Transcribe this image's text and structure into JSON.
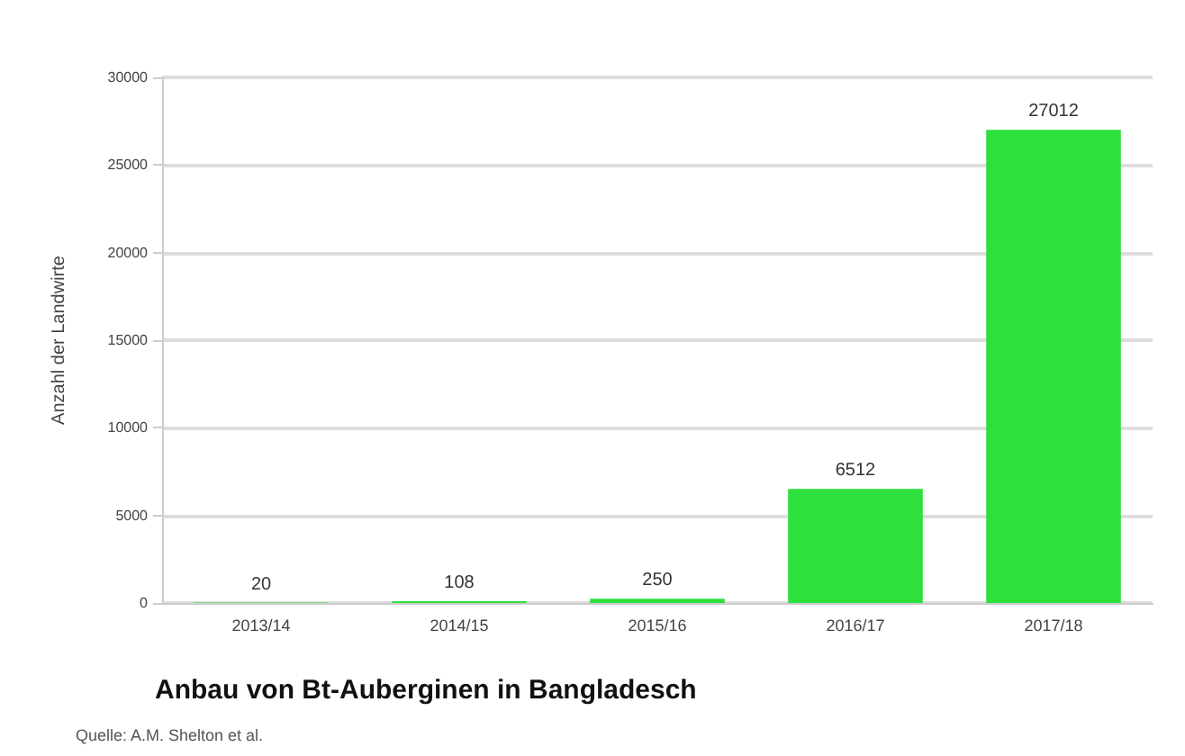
{
  "chart_data": {
    "type": "bar",
    "title": "Anbau von Bt-Auberginen in Bangladesch",
    "ylabel": "Anzahl der Landwirte",
    "categories": [
      "2013/14",
      "2014/15",
      "2015/16",
      "2016/17",
      "2017/18"
    ],
    "values": [
      20,
      108,
      250,
      6512,
      27012
    ],
    "color": "#2ee03e",
    "data_labels": true,
    "ylim": [
      0,
      30000
    ],
    "yticks": [
      0,
      5000,
      10000,
      15000,
      20000,
      25000,
      30000
    ],
    "grid": "y",
    "annotations": [
      "Quelle: A.M. Shelton et al."
    ]
  }
}
